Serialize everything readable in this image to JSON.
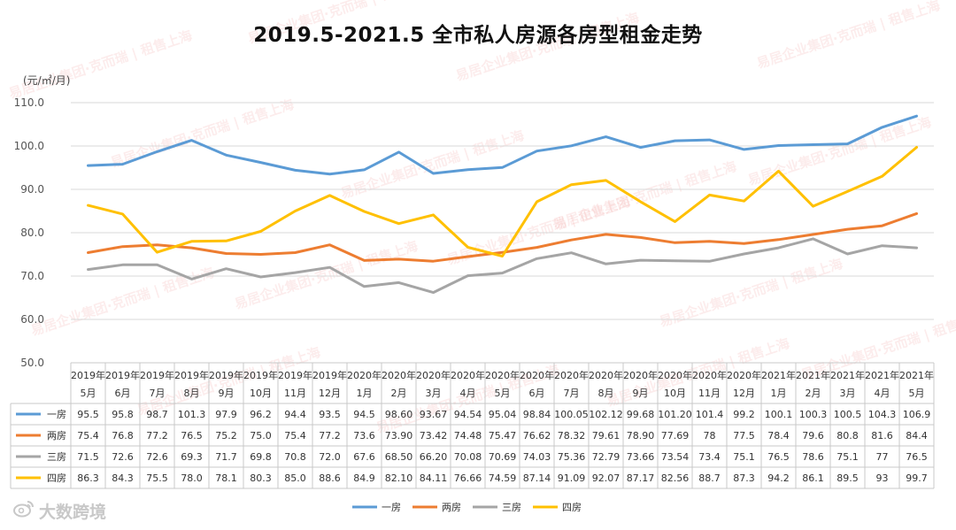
{
  "chart_data": {
    "type": "line",
    "title": "2019.5-2021.5 全市私人房源各房型租金走势",
    "ylabel": "(元/㎡/月)",
    "ylim": [
      50,
      110
    ],
    "yticks": [
      "50.0",
      "60.0",
      "70.0",
      "80.0",
      "90.0",
      "100.0",
      "110.0"
    ],
    "categories": [
      [
        "2019年",
        "5月"
      ],
      [
        "2019年",
        "6月"
      ],
      [
        "2019年",
        "7月"
      ],
      [
        "2019年",
        "8月"
      ],
      [
        "2019年",
        "9月"
      ],
      [
        "2019年",
        "10月"
      ],
      [
        "2019年",
        "11月"
      ],
      [
        "2019年",
        "12月"
      ],
      [
        "2020年",
        "1月"
      ],
      [
        "2020年",
        "2月"
      ],
      [
        "2020年",
        "3月"
      ],
      [
        "2020年",
        "4月"
      ],
      [
        "2020年",
        "5月"
      ],
      [
        "2020年",
        "6月"
      ],
      [
        "2020年",
        "7月"
      ],
      [
        "2020年",
        "8月"
      ],
      [
        "2020年",
        "9月"
      ],
      [
        "2020年",
        "10月"
      ],
      [
        "2020年",
        "11月"
      ],
      [
        "2020年",
        "12月"
      ],
      [
        "2021年",
        "1月"
      ],
      [
        "2021年",
        "2月"
      ],
      [
        "2021年",
        "3月"
      ],
      [
        "2021年",
        "4月"
      ],
      [
        "2021年",
        "5月"
      ]
    ],
    "series": [
      {
        "name": "一房",
        "color": "#5b9bd5",
        "values": [
          95.5,
          95.8,
          98.7,
          101.3,
          97.9,
          96.2,
          94.4,
          93.5,
          94.5,
          98.6,
          93.67,
          94.54,
          95.04,
          98.84,
          100.05,
          102.12,
          99.68,
          101.2,
          101.4,
          99.2,
          100.1,
          100.3,
          100.5,
          104.3,
          106.9
        ],
        "labels": [
          "95.5",
          "95.8",
          "98.7",
          "101.3",
          "97.9",
          "96.2",
          "94.4",
          "93.5",
          "94.5",
          "98.60",
          "93.67",
          "94.54",
          "95.04",
          "98.84",
          "100.05",
          "102.12",
          "99.68",
          "101.20",
          "101.4",
          "99.2",
          "100.1",
          "100.3",
          "100.5",
          "104.3",
          "106.9"
        ]
      },
      {
        "name": "两房",
        "color": "#ed7d31",
        "values": [
          75.4,
          76.8,
          77.2,
          76.5,
          75.2,
          75.0,
          75.4,
          77.2,
          73.6,
          73.9,
          73.42,
          74.48,
          75.47,
          76.62,
          78.32,
          79.61,
          78.9,
          77.69,
          78,
          77.5,
          78.4,
          79.6,
          80.8,
          81.6,
          84.4
        ],
        "labels": [
          "75.4",
          "76.8",
          "77.2",
          "76.5",
          "75.2",
          "75.0",
          "75.4",
          "77.2",
          "73.6",
          "73.90",
          "73.42",
          "74.48",
          "75.47",
          "76.62",
          "78.32",
          "79.61",
          "78.90",
          "77.69",
          "78",
          "77.5",
          "78.4",
          "79.6",
          "80.8",
          "81.6",
          "84.4"
        ]
      },
      {
        "name": "三房",
        "color": "#a5a5a5",
        "values": [
          71.5,
          72.6,
          72.6,
          69.3,
          71.7,
          69.8,
          70.8,
          72.0,
          67.6,
          68.5,
          66.2,
          70.08,
          70.69,
          74.03,
          75.36,
          72.79,
          73.66,
          73.54,
          73.4,
          75.1,
          76.5,
          78.6,
          75.1,
          77,
          76.5
        ],
        "labels": [
          "71.5",
          "72.6",
          "72.6",
          "69.3",
          "71.7",
          "69.8",
          "70.8",
          "72.0",
          "67.6",
          "68.50",
          "66.20",
          "70.08",
          "70.69",
          "74.03",
          "75.36",
          "72.79",
          "73.66",
          "73.54",
          "73.4",
          "75.1",
          "76.5",
          "78.6",
          "75.1",
          "77",
          "76.5"
        ]
      },
      {
        "name": "四房",
        "color": "#ffc000",
        "values": [
          86.3,
          84.3,
          75.5,
          78.0,
          78.1,
          80.3,
          85.0,
          88.6,
          84.9,
          82.1,
          84.11,
          76.66,
          74.59,
          87.14,
          91.09,
          92.07,
          87.17,
          82.56,
          88.7,
          87.3,
          94.2,
          86.1,
          89.5,
          93,
          99.7
        ],
        "labels": [
          "86.3",
          "84.3",
          "75.5",
          "78.0",
          "78.1",
          "80.3",
          "85.0",
          "88.6",
          "84.9",
          "82.10",
          "84.11",
          "76.66",
          "74.59",
          "87.14",
          "91.09",
          "92.07",
          "87.17",
          "82.56",
          "88.7",
          "87.3",
          "94.2",
          "86.1",
          "89.5",
          "93",
          "99.7"
        ]
      }
    ],
    "legend_position": "bottom",
    "grid": true
  },
  "watermark": {
    "brand": "易居企业集团·克而瑞",
    "city": "租售上海",
    "corner": "大数跨境"
  }
}
